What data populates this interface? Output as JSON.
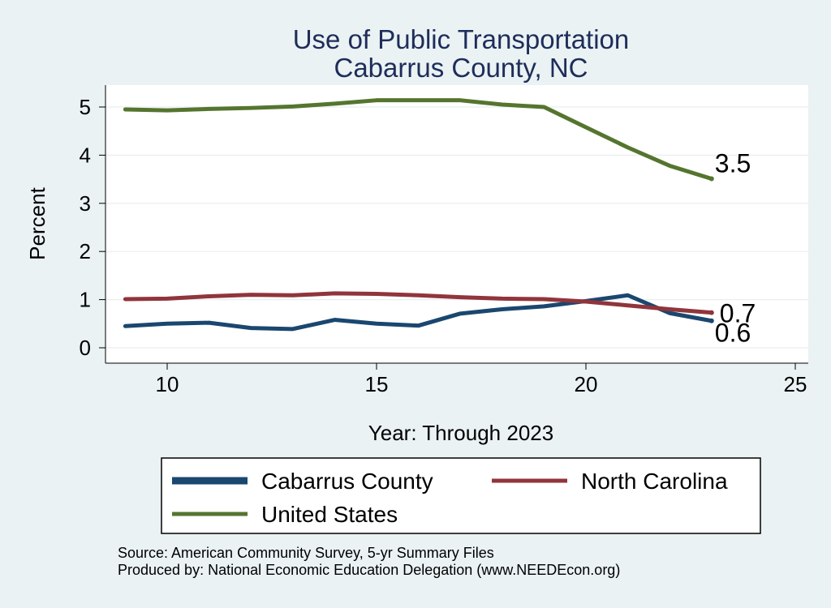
{
  "chart_data": {
    "type": "line",
    "title": "Use of Public Transportation",
    "subtitle": "Cabarrus County, NC",
    "xlabel": "Year: Through 2023",
    "ylabel": "Percent",
    "xlim": [
      9,
      25
    ],
    "ylim": [
      0,
      5.2
    ],
    "xticks": [
      10,
      15,
      20,
      25
    ],
    "yticks": [
      0,
      1,
      2,
      3,
      4,
      5
    ],
    "grid": true,
    "legend_position": "bottom",
    "x": [
      9,
      10,
      11,
      12,
      13,
      14,
      15,
      16,
      17,
      18,
      19,
      20,
      21,
      22,
      23
    ],
    "series": [
      {
        "name": "Cabarrus County",
        "color": "#1a476f",
        "values": [
          0.45,
          0.5,
          0.52,
          0.41,
          0.39,
          0.58,
          0.5,
          0.46,
          0.71,
          0.8,
          0.86,
          0.97,
          1.09,
          0.72,
          0.56
        ],
        "end_label": "0.6"
      },
      {
        "name": "North Carolina",
        "color": "#90353b",
        "values": [
          1.01,
          1.02,
          1.07,
          1.1,
          1.09,
          1.13,
          1.12,
          1.09,
          1.05,
          1.02,
          1.01,
          0.96,
          0.88,
          0.8,
          0.73
        ],
        "end_label": "0.7"
      },
      {
        "name": "United States",
        "color": "#55752f",
        "values": [
          4.95,
          4.93,
          4.96,
          4.98,
          5.01,
          5.07,
          5.14,
          5.14,
          5.14,
          5.05,
          5.0,
          4.58,
          4.16,
          3.78,
          3.51
        ],
        "end_label": "3.5"
      }
    ]
  },
  "footer": {
    "source": "Source: American Community Survey, 5-yr Summary Files",
    "produced_by": "Produced by: National Economic Education Delegation (www.NEEDEcon.org)"
  }
}
